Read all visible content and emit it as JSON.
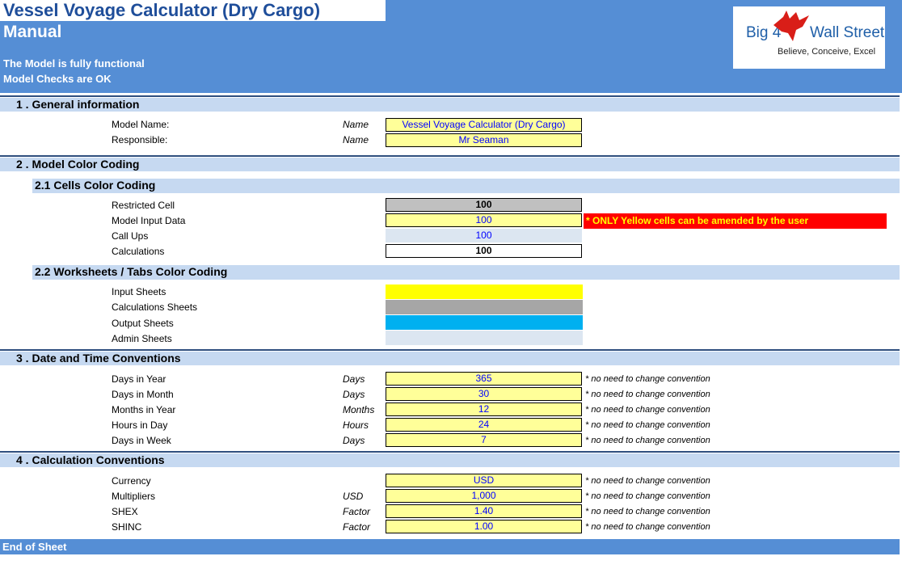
{
  "header": {
    "title": "Vessel Voyage Calculator (Dry Cargo)",
    "subtitle": "Manual",
    "status_1": "The Model is fully functional",
    "status_2": "Model Checks are OK"
  },
  "logo": {
    "brand_left": "Big 4",
    "brand_right": "Wall Street",
    "tagline": "Believe, Conceive, Excel",
    "icon": "eagle-icon"
  },
  "section1": {
    "title": "1 . General information",
    "rows": [
      {
        "label": "Model Name:",
        "unit": "Name",
        "value": "Vessel Voyage Calculator (Dry Cargo)"
      },
      {
        "label": "Responsible:",
        "unit": "Name",
        "value": "Mr Seaman"
      }
    ]
  },
  "section2": {
    "title": "2 . Model Color Coding",
    "sub1": {
      "title": "2.1 Cells Color Coding",
      "rows": [
        {
          "label": "Restricted Cell",
          "value": "100"
        },
        {
          "label": "Model Input Data",
          "value": "100"
        },
        {
          "label": "Call Ups",
          "value": "100"
        },
        {
          "label": "Calculations",
          "value": "100"
        }
      ],
      "warning": "* ONLY Yellow cells can be amended by the user"
    },
    "sub2": {
      "title": "2.2 Worksheets / Tabs Color Coding",
      "rows": [
        {
          "label": "Input Sheets",
          "color": "#ffff00"
        },
        {
          "label": "Calculations Sheets",
          "color": "#a6a6a6"
        },
        {
          "label": "Output Sheets",
          "color": "#00b0f0"
        },
        {
          "label": "Admin Sheets",
          "color": "#dce6f1"
        }
      ]
    }
  },
  "section3": {
    "title": "3 . Date and Time Conventions",
    "rows": [
      {
        "label": "Days in Year",
        "unit": "Days",
        "value": "365",
        "note": "* no need to change convention"
      },
      {
        "label": "Days in Month",
        "unit": "Days",
        "value": "30",
        "note": "* no need to change convention"
      },
      {
        "label": "Months in Year",
        "unit": "Months",
        "value": "12",
        "note": "* no need to change convention"
      },
      {
        "label": "Hours in Day",
        "unit": "Hours",
        "value": "24",
        "note": "* no need to change convention"
      },
      {
        "label": "Days in Week",
        "unit": "Days",
        "value": "7",
        "note": "* no need to change convention"
      }
    ]
  },
  "section4": {
    "title": "4 . Calculation Conventions",
    "rows": [
      {
        "label": "Currency",
        "unit": "",
        "value": "USD",
        "note": "* no need to change convention"
      },
      {
        "label": "Multipliers",
        "unit": "USD",
        "value": "1,000",
        "note": "* no need to change convention"
      },
      {
        "label": "SHEX",
        "unit": "Factor",
        "value": "1.40",
        "note": "* no need to change convention"
      },
      {
        "label": "SHINC",
        "unit": "Factor",
        "value": "1.00",
        "note": "* no need to change convention"
      }
    ]
  },
  "footer": {
    "text": "End of Sheet"
  },
  "colors": {
    "header_blue": "#558ed5",
    "section_blue": "#c6d9f1",
    "input_yellow": "#ffff99",
    "warning_red": "#ff0000"
  }
}
